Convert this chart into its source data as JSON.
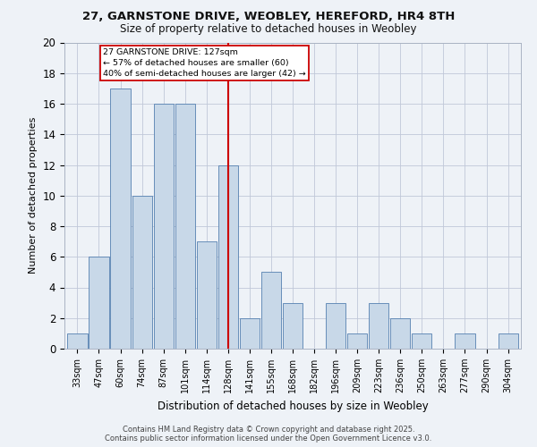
{
  "title_line1": "27, GARNSTONE DRIVE, WEOBLEY, HEREFORD, HR4 8TH",
  "title_line2": "Size of property relative to detached houses in Weobley",
  "xlabel": "Distribution of detached houses by size in Weobley",
  "ylabel": "Number of detached properties",
  "bin_labels": [
    "33sqm",
    "47sqm",
    "60sqm",
    "74sqm",
    "87sqm",
    "101sqm",
    "114sqm",
    "128sqm",
    "141sqm",
    "155sqm",
    "168sqm",
    "182sqm",
    "196sqm",
    "209sqm",
    "223sqm",
    "236sqm",
    "250sqm",
    "263sqm",
    "277sqm",
    "290sqm",
    "304sqm"
  ],
  "bar_values": [
    1,
    6,
    17,
    10,
    16,
    16,
    7,
    12,
    2,
    5,
    3,
    0,
    3,
    1,
    3,
    2,
    1,
    0,
    1,
    0,
    1
  ],
  "bar_color": "#c8d8e8",
  "bar_edge_color": "#5580b0",
  "highlight_index": 7,
  "vline_color": "#cc0000",
  "annotation_title": "27 GARNSTONE DRIVE: 127sqm",
  "annotation_line1": "← 57% of detached houses are smaller (60)",
  "annotation_line2": "40% of semi-detached houses are larger (42) →",
  "annotation_box_color": "#cc0000",
  "ylim": [
    0,
    20
  ],
  "yticks": [
    0,
    2,
    4,
    6,
    8,
    10,
    12,
    14,
    16,
    18,
    20
  ],
  "footnote1": "Contains HM Land Registry data © Crown copyright and database right 2025.",
  "footnote2": "Contains public sector information licensed under the Open Government Licence v3.0.",
  "background_color": "#eef2f7"
}
